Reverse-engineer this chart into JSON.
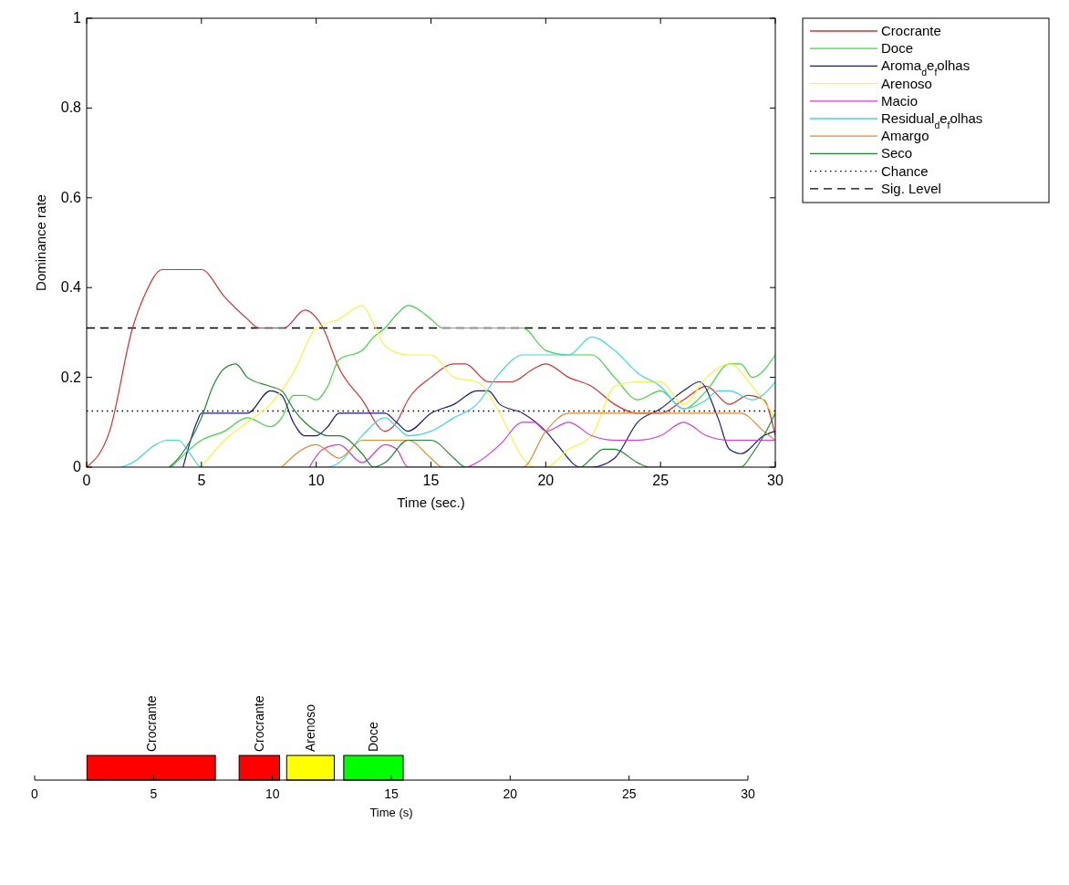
{
  "chart_data": [
    {
      "type": "line",
      "xlabel": "Time (sec.)",
      "ylabel": "Dominance rate",
      "xlim": [
        0,
        30
      ],
      "ylim": [
        0,
        1
      ],
      "xticks": [
        0,
        5,
        10,
        15,
        20,
        25,
        30
      ],
      "yticks": [
        0,
        0.2,
        0.4,
        0.6,
        0.8,
        1
      ],
      "legend": "right",
      "series": [
        {
          "name": "Crocrante",
          "color": "#d93030",
          "x": [
            0,
            1,
            2,
            2.5,
            3.3,
            5,
            6,
            7,
            7.5,
            8.6,
            9.5,
            10.3,
            11,
            12,
            13,
            13.5,
            14,
            15,
            16,
            16.5,
            17.5,
            18.5,
            19.5,
            20,
            21,
            22,
            23,
            24,
            25,
            26,
            27,
            28,
            28.8,
            29.5,
            30
          ],
          "values": [
            0,
            0.08,
            0.31,
            0.38,
            0.44,
            0.44,
            0.38,
            0.33,
            0.31,
            0.31,
            0.35,
            0.31,
            0.22,
            0.15,
            0.08,
            0.1,
            0.15,
            0.2,
            0.23,
            0.23,
            0.19,
            0.19,
            0.22,
            0.23,
            0.2,
            0.18,
            0.14,
            0.12,
            0.12,
            0.15,
            0.18,
            0.14,
            0.16,
            0.15,
            0.07
          ]
        },
        {
          "name": "Doce",
          "color": "#3cd83c",
          "x": [
            3.7,
            5,
            6,
            7,
            8,
            8.5,
            9,
            9.5,
            10,
            10.5,
            11,
            12,
            12.5,
            13,
            13.5,
            14,
            15,
            15.5,
            19,
            20,
            21,
            22,
            23,
            24,
            25,
            26,
            27,
            28,
            28.5,
            29,
            30
          ],
          "values": [
            0,
            0.06,
            0.08,
            0.11,
            0.09,
            0.11,
            0.16,
            0.16,
            0.15,
            0.18,
            0.24,
            0.26,
            0.29,
            0.31,
            0.34,
            0.36,
            0.33,
            0.31,
            0.31,
            0.26,
            0.25,
            0.25,
            0.2,
            0.15,
            0.17,
            0.13,
            0.17,
            0.23,
            0.23,
            0.2,
            0.25
          ]
        },
        {
          "name": "Aroma$_{d}$e$_{f}$olhas",
          "color": "#1c1c80",
          "x": [
            4.2,
            4.8,
            5,
            7,
            8,
            8.5,
            9,
            9.5,
            10,
            10.5,
            11,
            13,
            13.5,
            14,
            15,
            16,
            17,
            17.5,
            18,
            19,
            20,
            20.5,
            21.5,
            22,
            23,
            24,
            25,
            26,
            26.7,
            27.5,
            28,
            28.5,
            29.5,
            30
          ],
          "values": [
            0,
            0.1,
            0.12,
            0.12,
            0.17,
            0.16,
            0.1,
            0.07,
            0.07,
            0.09,
            0.12,
            0.12,
            0.1,
            0.08,
            0.12,
            0.14,
            0.17,
            0.17,
            0.14,
            0.12,
            0.08,
            0.05,
            0,
            0,
            0.02,
            0.1,
            0.13,
            0.17,
            0.19,
            0.11,
            0.04,
            0.03,
            0.07,
            0.08
          ]
        },
        {
          "name": "Arenoso",
          "color": "#f5f542",
          "x": [
            5,
            6,
            7,
            8,
            9,
            10,
            11,
            12,
            12.5,
            13,
            14,
            15,
            16,
            17,
            18,
            19,
            19.5,
            20,
            21,
            22,
            23,
            24,
            25,
            26,
            27,
            28,
            29,
            30
          ],
          "values": [
            0,
            0.06,
            0.1,
            0.14,
            0.21,
            0.31,
            0.33,
            0.36,
            0.32,
            0.27,
            0.25,
            0.25,
            0.2,
            0.19,
            0.12,
            0.02,
            0,
            0,
            0.04,
            0.07,
            0.18,
            0.19,
            0.19,
            0.14,
            0.2,
            0.23,
            0.18,
            0.11
          ]
        },
        {
          "name": "Macio",
          "color": "#d838d8",
          "x": [
            9.7,
            10.3,
            11,
            12,
            13,
            13.5,
            14,
            16.5,
            17,
            18,
            19,
            19.5,
            20,
            21,
            22,
            23,
            24,
            25,
            26,
            27,
            28,
            30
          ],
          "values": [
            0,
            0.04,
            0.05,
            0.01,
            0.05,
            0.04,
            0,
            0,
            0.01,
            0.05,
            0.1,
            0.1,
            0.08,
            0.1,
            0.07,
            0.06,
            0.06,
            0.07,
            0.1,
            0.07,
            0.06,
            0.06
          ]
        },
        {
          "name": "Residual$_{d}$e$_{f}$olhas",
          "color": "#40d8e0",
          "x": [
            1.5,
            2,
            3,
            3.5,
            4,
            4.5,
            5,
            10.5,
            11,
            12,
            13,
            13.5,
            14,
            15,
            16,
            17,
            18,
            19,
            20,
            21,
            22,
            23,
            24,
            25,
            26,
            27,
            27.5,
            28,
            29,
            30
          ],
          "values": [
            0,
            0.01,
            0.05,
            0.06,
            0.06,
            0.03,
            0,
            0,
            0.01,
            0.07,
            0.11,
            0.09,
            0.07,
            0.08,
            0.11,
            0.14,
            0.21,
            0.25,
            0.25,
            0.25,
            0.29,
            0.26,
            0.21,
            0.18,
            0.13,
            0.15,
            0.17,
            0.17,
            0.15,
            0.19
          ]
        },
        {
          "name": "Amargo",
          "color": "#e08a30",
          "x": [
            8.5,
            10,
            11,
            12,
            13,
            14,
            15,
            15.5,
            19,
            20,
            21,
            28.5,
            29.5,
            30
          ],
          "values": [
            0,
            0.05,
            0.02,
            0.06,
            0.06,
            0.06,
            0.02,
            0,
            0,
            0.08,
            0.12,
            0.12,
            0.08,
            0.06
          ]
        },
        {
          "name": "Seco",
          "color": "#1e8a2e",
          "x": [
            3.6,
            4,
            5,
            5.5,
            6,
            6.5,
            7,
            8,
            8.5,
            9,
            9.5,
            10,
            10.5,
            11,
            12,
            12.5,
            13,
            14,
            15,
            16,
            16.5,
            21.5,
            22,
            22.5,
            23,
            24,
            24.5,
            28.5,
            29,
            29.5,
            30
          ],
          "values": [
            0,
            0.02,
            0.11,
            0.18,
            0.22,
            0.23,
            0.2,
            0.18,
            0.17,
            0.13,
            0.1,
            0.08,
            0.07,
            0.07,
            0.03,
            0,
            0.01,
            0.06,
            0.06,
            0.02,
            0,
            0,
            0.02,
            0.04,
            0.04,
            0.01,
            0,
            0,
            0.03,
            0.07,
            0.12
          ]
        }
      ],
      "ref_lines": [
        {
          "axis": "y",
          "value": 0.125,
          "label": "Chance",
          "line_style": "dotted",
          "color": "#000000"
        },
        {
          "axis": "y",
          "value": 0.31,
          "label": "Sig. Level",
          "line_style": "dashed",
          "color": "#000000"
        }
      ]
    },
    {
      "type": "bar",
      "orientation": "horizontal",
      "xlabel": "Time (s)",
      "xlim": [
        0,
        30
      ],
      "xticks": [
        0,
        5,
        10,
        15,
        20,
        25,
        30
      ],
      "tick_labels": "x",
      "categories": [
        null
      ],
      "series": [
        {
          "name": "Crocrante",
          "color": "#ff0000",
          "values": [
            5.4
          ],
          "base": [
            2.2
          ]
        },
        {
          "name": "Crocrante",
          "color": "#ff0000",
          "values": [
            1.7
          ],
          "base": [
            8.6
          ]
        },
        {
          "name": "Arenoso",
          "color": "#ffff00",
          "values": [
            2.0
          ],
          "base": [
            10.6
          ]
        },
        {
          "name": "Doce",
          "color": "#00ff00",
          "values": [
            2.5
          ],
          "base": [
            13.0
          ]
        }
      ]
    }
  ]
}
